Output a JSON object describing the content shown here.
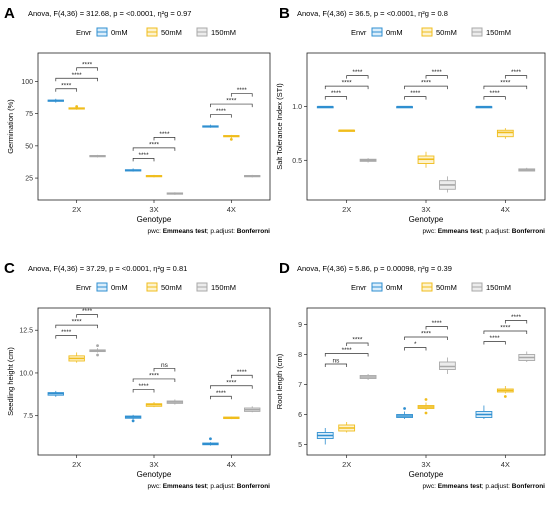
{
  "figure": {
    "x_axis_label": "Genotype",
    "legend_title": "Envr",
    "legend_labels": [
      "0mM",
      "50mM",
      "150mM"
    ],
    "colors": {
      "0mM": "#2f8fd0",
      "50mM": "#f0bd1c",
      "150mM": "#a8a8a8"
    },
    "pwc_prefix": "pwc: ",
    "pwc_test": "Emmeans test",
    "padjust_prefix": "; p.adjust: ",
    "padjust_method": "Bonferroni"
  },
  "chart_data": [
    {
      "panel_letter": "A",
      "type": "box",
      "subtitle": "Anova, F(4,36) = 312.68, p = <0.0001, η²g = 0.97",
      "xlabel": "Genotype",
      "ylabel": "Germination (%)",
      "ylim": [
        8,
        122
      ],
      "yticks": [
        25,
        50,
        75,
        100
      ],
      "tick_labels": [
        "25",
        "50",
        "75",
        "100"
      ],
      "categories": [
        "2X",
        "3X",
        "4X"
      ],
      "series": [
        {
          "name": "0mM",
          "boxes": [
            [
              83.5,
              84.5,
              85,
              85.5,
              86.5
            ],
            [
              30,
              30.5,
              31,
              31.5,
              32.5
            ],
            [
              64,
              64.5,
              65,
              65.5,
              66.5
            ]
          ],
          "outliers": [
            [],
            [],
            []
          ]
        },
        {
          "name": "50mM",
          "boxes": [
            [
              78,
              78.5,
              79,
              79.5,
              80
            ],
            [
              25.5,
              26,
              26.5,
              27,
              27.5
            ],
            [
              56,
              57,
              57.5,
              58,
              58.5
            ]
          ],
          "outliers": [
            [
              80.5
            ],
            [],
            [
              55
            ]
          ]
        },
        {
          "name": "150mM",
          "boxes": [
            [
              41,
              41.5,
              42,
              42.5,
              43
            ],
            [
              12,
              12.5,
              13,
              13.5,
              14
            ],
            [
              25.5,
              26,
              26.5,
              27,
              27.5
            ]
          ],
          "outliers": [
            [],
            [],
            []
          ]
        }
      ],
      "brackets": [
        {
          "cat": 0,
          "from": 0,
          "to": 1,
          "level": 0,
          "label": "****"
        },
        {
          "cat": 0,
          "from": 0,
          "to": 2,
          "level": 1,
          "label": "****"
        },
        {
          "cat": 0,
          "from": 1,
          "to": 2,
          "level": 2,
          "label": "****"
        },
        {
          "cat": 1,
          "from": 0,
          "to": 1,
          "level": 0,
          "label": "****"
        },
        {
          "cat": 1,
          "from": 0,
          "to": 2,
          "level": 1,
          "label": "****"
        },
        {
          "cat": 1,
          "from": 1,
          "to": 2,
          "level": 2,
          "label": "****"
        },
        {
          "cat": 2,
          "from": 0,
          "to": 1,
          "level": 0,
          "label": "****"
        },
        {
          "cat": 2,
          "from": 0,
          "to": 2,
          "level": 1,
          "label": "****"
        },
        {
          "cat": 2,
          "from": 1,
          "to": 2,
          "level": 2,
          "label": "****"
        }
      ]
    },
    {
      "panel_letter": "B",
      "type": "box",
      "subtitle": "Anova, F(4,36) = 36.5, p = <0.0001, η²g = 0.8",
      "xlabel": "Genotype",
      "ylabel": "Salt Tolerance Index (STI)",
      "ylim": [
        0.13,
        1.5
      ],
      "yticks": [
        0.5,
        1.0
      ],
      "tick_labels": [
        "0.5",
        "1.0"
      ],
      "categories": [
        "2X",
        "3X",
        "4X"
      ],
      "series": [
        {
          "name": "0mM",
          "boxes": [
            [
              1.0,
              1.0,
              1.0,
              1.0,
              1.0
            ],
            [
              1.0,
              1.0,
              1.0,
              1.0,
              1.0
            ],
            [
              1.0,
              1.0,
              1.0,
              1.0,
              1.0
            ]
          ],
          "outliers": [
            [],
            [],
            []
          ]
        },
        {
          "name": "50mM",
          "boxes": [
            [
              0.78,
              0.78,
              0.78,
              0.78,
              0.78
            ],
            [
              0.43,
              0.47,
              0.51,
              0.54,
              0.58
            ],
            [
              0.7,
              0.72,
              0.76,
              0.78,
              0.8
            ]
          ],
          "outliers": [
            [],
            [],
            []
          ]
        },
        {
          "name": "150mM",
          "boxes": [
            [
              0.48,
              0.49,
              0.5,
              0.51,
              0.52
            ],
            [
              0.2,
              0.23,
              0.27,
              0.31,
              0.35
            ],
            [
              0.4,
              0.4,
              0.41,
              0.42,
              0.43
            ]
          ],
          "outliers": [
            [],
            [],
            []
          ]
        }
      ],
      "brackets": [
        {
          "cat": 0,
          "from": 0,
          "to": 1,
          "level": 0,
          "label": "****"
        },
        {
          "cat": 0,
          "from": 0,
          "to": 2,
          "level": 1,
          "label": "****"
        },
        {
          "cat": 0,
          "from": 1,
          "to": 2,
          "level": 2,
          "label": "****"
        },
        {
          "cat": 1,
          "from": 0,
          "to": 1,
          "level": 0,
          "label": "****"
        },
        {
          "cat": 1,
          "from": 0,
          "to": 2,
          "level": 1,
          "label": "****"
        },
        {
          "cat": 1,
          "from": 1,
          "to": 2,
          "level": 2,
          "label": "****"
        },
        {
          "cat": 2,
          "from": 0,
          "to": 1,
          "level": 0,
          "label": "****"
        },
        {
          "cat": 2,
          "from": 0,
          "to": 2,
          "level": 1,
          "label": "****"
        },
        {
          "cat": 2,
          "from": 1,
          "to": 2,
          "level": 2,
          "label": "****"
        }
      ]
    },
    {
      "panel_letter": "C",
      "type": "box",
      "subtitle": "Anova, F(4,36) = 37.29, p = <0.0001, η²g = 0.81",
      "xlabel": "Genotype",
      "ylabel": "Seedling height (cm)",
      "ylim": [
        5.2,
        13.8
      ],
      "yticks": [
        7.5,
        10.0,
        12.5
      ],
      "tick_labels": [
        "7.5",
        "10.0",
        "12.5"
      ],
      "categories": [
        "2X",
        "3X",
        "4X"
      ],
      "series": [
        {
          "name": "0mM",
          "boxes": [
            [
              8.6,
              8.7,
              8.8,
              8.85,
              8.95
            ],
            [
              7.3,
              7.35,
              7.42,
              7.48,
              7.55
            ],
            [
              5.75,
              5.8,
              5.85,
              5.9,
              5.95
            ]
          ],
          "outliers": [
            [],
            [
              7.2
            ],
            [
              6.15
            ]
          ]
        },
        {
          "name": "50mM",
          "boxes": [
            [
              10.6,
              10.7,
              10.85,
              11.0,
              11.2
            ],
            [
              8.0,
              8.05,
              8.15,
              8.2,
              8.3
            ],
            [
              7.3,
              7.33,
              7.38,
              7.42,
              7.45
            ]
          ],
          "outliers": [
            [],
            [],
            []
          ]
        },
        {
          "name": "150mM",
          "boxes": [
            [
              11.2,
              11.25,
              11.3,
              11.35,
              11.45
            ],
            [
              8.15,
              8.22,
              8.3,
              8.36,
              8.45
            ],
            [
              7.7,
              7.75,
              7.85,
              7.95,
              8.05
            ]
          ],
          "outliers": [
            [
              11.6,
              11.05
            ],
            [],
            []
          ]
        }
      ],
      "brackets": [
        {
          "cat": 0,
          "from": 0,
          "to": 1,
          "level": 0,
          "label": "****"
        },
        {
          "cat": 0,
          "from": 0,
          "to": 2,
          "level": 1,
          "label": "****"
        },
        {
          "cat": 0,
          "from": 1,
          "to": 2,
          "level": 2,
          "label": "****"
        },
        {
          "cat": 1,
          "from": 0,
          "to": 1,
          "level": 0,
          "label": "****"
        },
        {
          "cat": 1,
          "from": 0,
          "to": 2,
          "level": 1,
          "label": "****"
        },
        {
          "cat": 1,
          "from": 1,
          "to": 2,
          "level": 2,
          "label": "ns"
        },
        {
          "cat": 2,
          "from": 0,
          "to": 1,
          "level": 0,
          "label": "****"
        },
        {
          "cat": 2,
          "from": 0,
          "to": 2,
          "level": 1,
          "label": "****"
        },
        {
          "cat": 2,
          "from": 1,
          "to": 2,
          "level": 2,
          "label": "****"
        }
      ]
    },
    {
      "panel_letter": "D",
      "type": "box",
      "subtitle": "Anova, F(4,36) = 5.86, p = 0.00098, η²g = 0.39",
      "xlabel": "Genotype",
      "ylabel": "Root length (cm)",
      "ylim": [
        4.65,
        9.55
      ],
      "yticks": [
        5,
        6,
        7,
        8,
        9
      ],
      "tick_labels": [
        "5",
        "6",
        "7",
        "8",
        "9"
      ],
      "categories": [
        "2X",
        "3X",
        "4X"
      ],
      "series": [
        {
          "name": "0mM",
          "boxes": [
            [
              5.0,
              5.2,
              5.3,
              5.4,
              5.55
            ],
            [
              5.85,
              5.9,
              5.95,
              6.0,
              6.1
            ],
            [
              5.85,
              5.9,
              6.0,
              6.1,
              6.3
            ]
          ],
          "outliers": [
            [],
            [
              6.2
            ],
            []
          ]
        },
        {
          "name": "50mM",
          "boxes": [
            [
              5.4,
              5.45,
              5.55,
              5.65,
              5.75
            ],
            [
              6.15,
              6.2,
              6.25,
              6.3,
              6.4
            ],
            [
              6.7,
              6.75,
              6.8,
              6.85,
              6.95
            ]
          ],
          "outliers": [
            [],
            [
              6.5,
              6.05
            ],
            [
              6.6
            ]
          ]
        },
        {
          "name": "150mM",
          "boxes": [
            [
              7.15,
              7.2,
              7.25,
              7.3,
              7.35
            ],
            [
              7.35,
              7.5,
              7.6,
              7.75,
              7.9
            ],
            [
              7.75,
              7.8,
              7.9,
              8.0,
              8.1
            ]
          ],
          "outliers": [
            [],
            [],
            []
          ]
        }
      ],
      "brackets": [
        {
          "cat": 0,
          "from": 0,
          "to": 1,
          "level": 0,
          "label": "ns"
        },
        {
          "cat": 0,
          "from": 0,
          "to": 2,
          "level": 1,
          "label": "****"
        },
        {
          "cat": 0,
          "from": 1,
          "to": 2,
          "level": 2,
          "label": "****"
        },
        {
          "cat": 1,
          "from": 0,
          "to": 1,
          "level": 0,
          "label": "*"
        },
        {
          "cat": 1,
          "from": 0,
          "to": 2,
          "level": 1,
          "label": "****"
        },
        {
          "cat": 1,
          "from": 1,
          "to": 2,
          "level": 2,
          "label": "****"
        },
        {
          "cat": 2,
          "from": 0,
          "to": 1,
          "level": 0,
          "label": "****"
        },
        {
          "cat": 2,
          "from": 0,
          "to": 2,
          "level": 1,
          "label": "****"
        },
        {
          "cat": 2,
          "from": 1,
          "to": 2,
          "level": 2,
          "label": "****"
        }
      ]
    }
  ]
}
